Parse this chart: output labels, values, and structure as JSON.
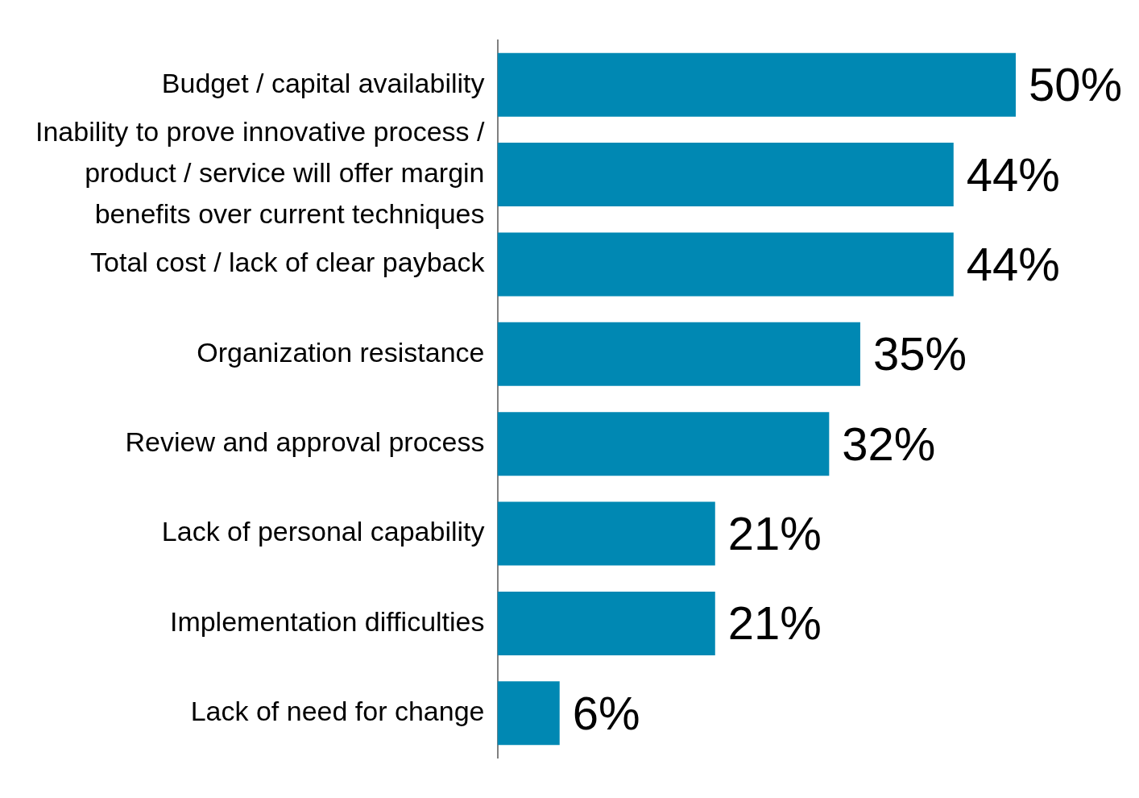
{
  "chart_data": {
    "type": "bar",
    "orientation": "horizontal",
    "categories": [
      "Budget / capital availability",
      "Inability to prove innovative process / product / service will offer margin benefits over current techniques",
      "Total cost / lack of clear payback",
      "Organization resistance",
      "Review and approval process",
      "Lack of personal capability",
      "Implementation difficulties",
      "Lack of need for change"
    ],
    "values": [
      50,
      44,
      44,
      35,
      32,
      21,
      21,
      6
    ],
    "value_labels": [
      "50%",
      "44%",
      "44%",
      "35%",
      "32%",
      "21%",
      "21%",
      "6%"
    ],
    "color": "#0088b3"
  }
}
